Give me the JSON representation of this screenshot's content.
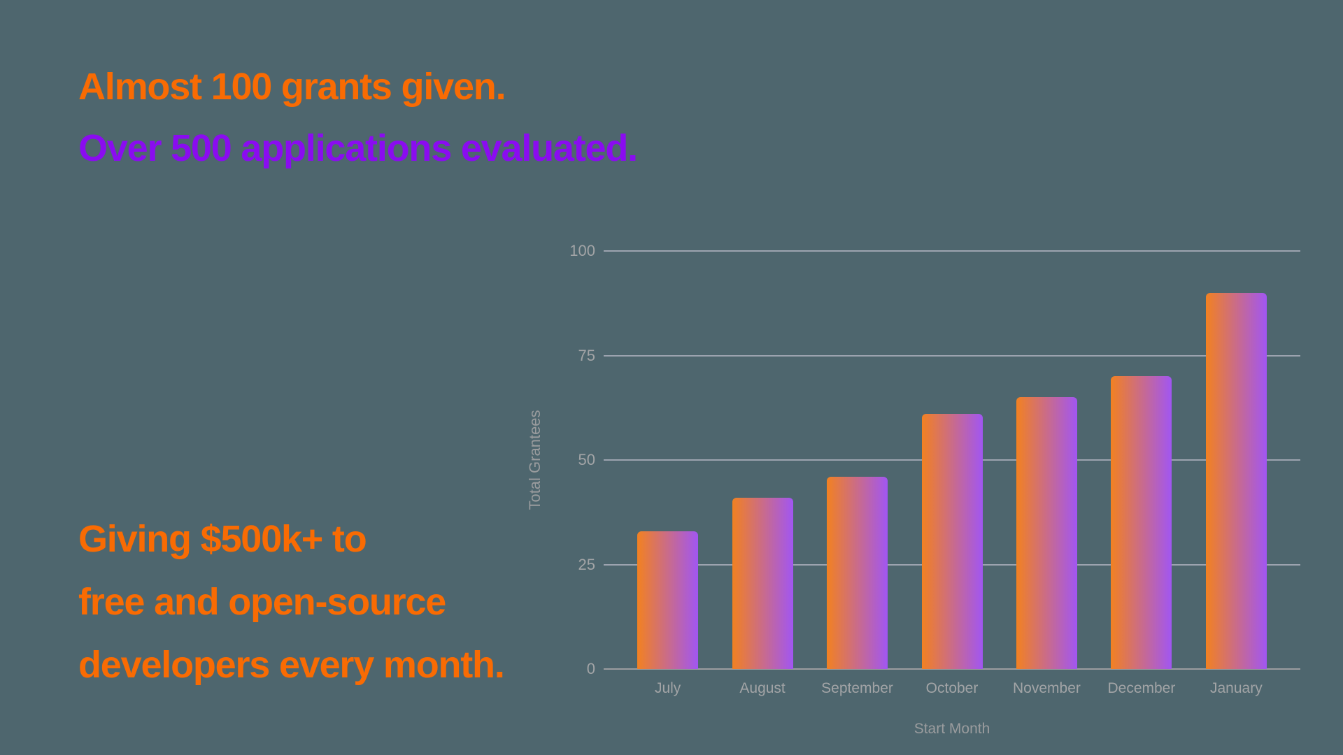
{
  "page": {
    "background": "#4E666E"
  },
  "hero": {
    "line1": "Almost 100 grants given.",
    "line2": "Over 500 applications evaluated.",
    "line1_color": "#F96B03",
    "line2_color": "#8A0CF0"
  },
  "footer_note": {
    "color": "#F96B03",
    "lines": [
      "Giving $500k+ to",
      "free and open-source",
      "developers every month."
    ]
  },
  "chart_data": {
    "type": "bar",
    "title": "",
    "categories": [
      "July",
      "August",
      "September",
      "October",
      "November",
      "December",
      "January"
    ],
    "values": [
      33,
      41,
      46,
      61,
      65,
      70,
      90
    ],
    "xlabel": "Start Month",
    "ylabel": "Total Grantees",
    "ylim": [
      0,
      100
    ],
    "yticks": [
      0,
      25,
      50,
      75,
      100
    ],
    "grid": true,
    "legend": false,
    "bar_gradient_left": "#F28121",
    "bar_gradient_right": "#A156F2",
    "gridline_color": "rgba(208,203,218,0.6)",
    "baseline_color": "#9B9DA0",
    "tick_label_color": "#A2A4A6",
    "axis_title_color": "#9A9C9E"
  }
}
